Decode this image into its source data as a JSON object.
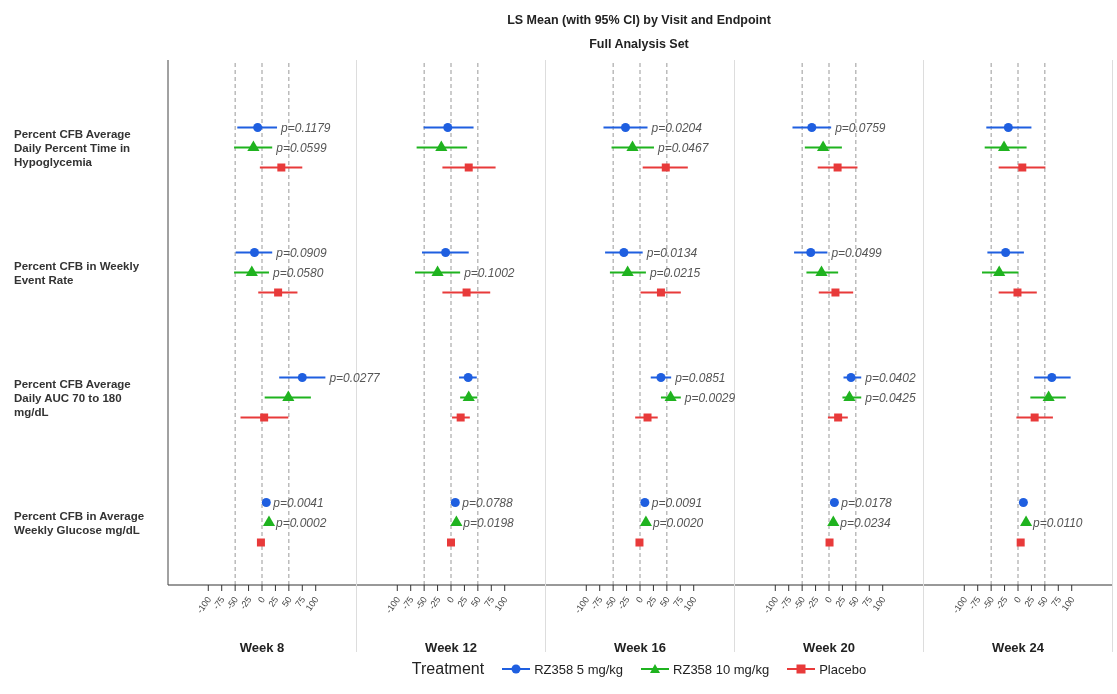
{
  "chart_data": [
    {
      "type": "scatter",
      "orientation": "horizontal",
      "xlabel": "Week 8",
      "legend": "bottom",
      "legend_title": "Treatment",
      "categories": [
        "Percent CFB Average Daily Percent Time in Hypoglycemia",
        "Percent CFB in Weekly Event Rate",
        "Percent CFB Average Daily AUC 70 to 180 mg/dL",
        "Percent CFB in Average Weekly Glucose mg/dL"
      ],
      "xlim": [
        -175,
        175
      ],
      "xticks": [
        -100,
        -75,
        -50,
        -25,
        0,
        25,
        50,
        75,
        100
      ],
      "ref_lines": [
        {
          "axis": "x",
          "value": -50,
          "color": "#999999",
          "line_style": "dashed"
        },
        {
          "axis": "x",
          "value": 0,
          "color": "#999999",
          "line_style": "dashed"
        },
        {
          "axis": "x",
          "value": 50,
          "color": "#999999",
          "line_style": "dashed"
        }
      ],
      "annotations": [
        {
          "text": "p=0.1179",
          "x": -8,
          "y": "Percent CFB Average Daily Percent Time in Hypoglycemia"
        },
        {
          "text": "p=0.0599",
          "x": -16,
          "y": "Percent CFB Average Daily Percent Time in Hypoglycemia"
        },
        {
          "text": "p=0.0909",
          "x": -14,
          "y": "Percent CFB in Weekly Event Rate"
        },
        {
          "text": "p=0.0580",
          "x": -19,
          "y": "Percent CFB in Weekly Event Rate"
        },
        {
          "text": "p=0.0277",
          "x": 75,
          "y": "Percent CFB Average Daily AUC 70 to 180 mg/dL"
        },
        {
          "text": "p=0.0041",
          "x": 8,
          "y": "Percent CFB in Average Weekly Glucose mg/dL"
        },
        {
          "text": "p=0.0002",
          "x": 13,
          "y": "Percent CFB in Average Weekly Glucose mg/dL"
        }
      ],
      "series": [
        {
          "name": "RZ358 5 mg/kg",
          "color": "#1f5fe0",
          "marker": "circle",
          "values": [
            -8,
            -14,
            75,
            8
          ],
          "errors": [
            [
              -46,
              28
            ],
            [
              -49,
              19
            ],
            [
              32,
              118
            ],
            null
          ]
        },
        {
          "name": "RZ358 10 mg/kg",
          "color": "#1fb31f",
          "marker": "triangle",
          "values": [
            -16,
            -19,
            49,
            13
          ],
          "errors": [
            [
              -52,
              19
            ],
            [
              -52,
              13
            ],
            [
              5,
              91
            ],
            null
          ]
        },
        {
          "name": "Placebo",
          "color": "#e83a3a",
          "marker": "square",
          "values": [
            36,
            30,
            4,
            -2
          ],
          "errors": [
            [
              -4,
              75
            ],
            [
              -7,
              66
            ],
            [
              -40,
              49
            ],
            null
          ]
        }
      ]
    },
    {
      "type": "scatter",
      "orientation": "horizontal",
      "xlabel": "Week 12",
      "tick_labels": "x",
      "categories": [
        "Percent CFB Average Daily Percent Time in Hypoglycemia",
        "Percent CFB in Weekly Event Rate",
        "Percent CFB Average Daily AUC 70 to 180 mg/dL",
        "Percent CFB in Average Weekly Glucose mg/dL"
      ],
      "xlim": [
        -175,
        175
      ],
      "xticks": [
        -100,
        -75,
        -50,
        -25,
        0,
        25,
        50,
        75,
        100
      ],
      "ref_lines": [
        {
          "axis": "x",
          "value": -50,
          "color": "#999999",
          "line_style": "dashed"
        },
        {
          "axis": "x",
          "value": 0,
          "color": "#999999",
          "line_style": "dashed"
        },
        {
          "axis": "x",
          "value": 50,
          "color": "#999999",
          "line_style": "dashed"
        }
      ],
      "annotations": [
        {
          "text": "p=0.1002",
          "x": -25,
          "y": "Percent CFB in Weekly Event Rate"
        },
        {
          "text": "p=0.0788",
          "x": 8,
          "y": "Percent CFB in Average Weekly Glucose mg/dL"
        },
        {
          "text": "p=0.0198",
          "x": 10,
          "y": "Percent CFB in Average Weekly Glucose mg/dL"
        }
      ],
      "series": [
        {
          "color": "#1f5fe0",
          "marker": "circle",
          "values": [
            -6,
            -10,
            32,
            8
          ],
          "errors": [
            [
              -51,
              42
            ],
            [
              -54,
              33
            ],
            [
              15,
              48
            ],
            null
          ]
        },
        {
          "color": "#1fb31f",
          "marker": "triangle",
          "values": [
            -18,
            -25,
            33,
            10
          ],
          "errors": [
            [
              -64,
              30
            ],
            [
              -67,
              17
            ],
            [
              17,
              49
            ],
            null
          ]
        },
        {
          "color": "#e83a3a",
          "marker": "square",
          "values": [
            33,
            29,
            18,
            0
          ],
          "errors": [
            [
              -16,
              83
            ],
            [
              -16,
              73
            ],
            [
              2,
              35
            ],
            null
          ]
        }
      ]
    },
    {
      "type": "scatter",
      "orientation": "horizontal",
      "title": "LS Mean (with 95% CI) by Visit and Endpoint",
      "subtitle": "Full Analysis Set",
      "xlabel": "Week 16",
      "tick_labels": "x",
      "categories": [
        "Percent CFB Average Daily Percent Time in Hypoglycemia",
        "Percent CFB in Weekly Event Rate",
        "Percent CFB Average Daily AUC 70 to 180 mg/dL",
        "Percent CFB in Average Weekly Glucose mg/dL"
      ],
      "xlim": [
        -175,
        175
      ],
      "xticks": [
        -100,
        -75,
        -50,
        -25,
        0,
        25,
        50,
        75,
        100
      ],
      "ref_lines": [
        {
          "axis": "x",
          "value": -50,
          "color": "#999999",
          "line_style": "dashed"
        },
        {
          "axis": "x",
          "value": 0,
          "color": "#999999",
          "line_style": "dashed"
        },
        {
          "axis": "x",
          "value": 50,
          "color": "#999999",
          "line_style": "dashed"
        }
      ],
      "annotations": [
        {
          "text": "p=0.0204",
          "x": -27,
          "y": "Percent CFB Average Daily Percent Time in Hypoglycemia"
        },
        {
          "text": "p=0.0467",
          "x": -14,
          "y": "Percent CFB Average Daily Percent Time in Hypoglycemia"
        },
        {
          "text": "p=0.0134",
          "x": -30,
          "y": "Percent CFB in Weekly Event Rate"
        },
        {
          "text": "p=0.0215",
          "x": -23,
          "y": "Percent CFB in Weekly Event Rate"
        },
        {
          "text": "p=0.0851",
          "x": 39,
          "y": "Percent CFB Average Daily AUC 70 to 180 mg/dL"
        },
        {
          "text": "p=0.0029",
          "x": 57,
          "y": "Percent CFB Average Daily AUC 70 to 180 mg/dL"
        },
        {
          "text": "p=0.0091",
          "x": 9,
          "y": "Percent CFB in Average Weekly Glucose mg/dL"
        },
        {
          "text": "p=0.0020",
          "x": 11,
          "y": "Percent CFB in Average Weekly Glucose mg/dL"
        }
      ],
      "series": [
        {
          "color": "#1f5fe0",
          "marker": "circle",
          "values": [
            -27,
            -30,
            39,
            9
          ],
          "errors": [
            [
              -68,
              14
            ],
            [
              -65,
              5
            ],
            [
              20,
              58
            ],
            null
          ]
        },
        {
          "color": "#1fb31f",
          "marker": "triangle",
          "values": [
            -14,
            -23,
            57,
            11
          ],
          "errors": [
            [
              -53,
              26
            ],
            [
              -56,
              11
            ],
            [
              39,
              76
            ],
            null
          ]
        },
        {
          "color": "#e83a3a",
          "marker": "square",
          "values": [
            48,
            39,
            14,
            -1
          ],
          "errors": [
            [
              5,
              89
            ],
            [
              1,
              76
            ],
            [
              -9,
              33
            ],
            null
          ]
        }
      ]
    },
    {
      "type": "scatter",
      "orientation": "horizontal",
      "xlabel": "Week 20",
      "tick_labels": "x",
      "categories": [
        "Percent CFB Average Daily Percent Time in Hypoglycemia",
        "Percent CFB in Weekly Event Rate",
        "Percent CFB Average Daily AUC 70 to 180 mg/dL",
        "Percent CFB in Average Weekly Glucose mg/dL"
      ],
      "xlim": [
        -175,
        175
      ],
      "xticks": [
        -100,
        -75,
        -50,
        -25,
        0,
        25,
        50,
        75,
        100
      ],
      "ref_lines": [
        {
          "axis": "x",
          "value": -50,
          "color": "#999999",
          "line_style": "dashed"
        },
        {
          "axis": "x",
          "value": 0,
          "color": "#999999",
          "line_style": "dashed"
        },
        {
          "axis": "x",
          "value": 50,
          "color": "#999999",
          "line_style": "dashed"
        }
      ],
      "annotations": [
        {
          "text": "p=0.0759",
          "x": -32,
          "y": "Percent CFB Average Daily Percent Time in Hypoglycemia"
        },
        {
          "text": "p=0.0499",
          "x": -34,
          "y": "Percent CFB in Weekly Event Rate"
        },
        {
          "text": "p=0.0402",
          "x": 41,
          "y": "Percent CFB Average Daily AUC 70 to 180 mg/dL"
        },
        {
          "text": "p=0.0425",
          "x": 38,
          "y": "Percent CFB Average Daily AUC 70 to 180 mg/dL"
        },
        {
          "text": "p=0.0178",
          "x": 10,
          "y": "Percent CFB in Average Weekly Glucose mg/dL"
        },
        {
          "text": "p=0.0234",
          "x": 8,
          "y": "Percent CFB in Average Weekly Glucose mg/dL"
        }
      ],
      "series": [
        {
          "color": "#1f5fe0",
          "marker": "circle",
          "values": [
            -32,
            -34,
            41,
            10
          ],
          "errors": [
            [
              -68,
              4
            ],
            [
              -65,
              -3
            ],
            [
              27,
              60
            ],
            null
          ]
        },
        {
          "color": "#1fb31f",
          "marker": "triangle",
          "values": [
            -11,
            -14,
            38,
            8
          ],
          "errors": [
            [
              -45,
              24
            ],
            [
              -42,
              17
            ],
            [
              25,
              60
            ],
            null
          ]
        },
        {
          "color": "#e83a3a",
          "marker": "square",
          "values": [
            16,
            12,
            17,
            1
          ],
          "errors": [
            [
              -21,
              53
            ],
            [
              -19,
              45
            ],
            [
              -2,
              35
            ],
            null
          ]
        }
      ]
    },
    {
      "type": "scatter",
      "orientation": "horizontal",
      "xlabel": "Week 24",
      "tick_labels": "x",
      "categories": [
        "Percent CFB Average Daily Percent Time in Hypoglycemia",
        "Percent CFB in Weekly Event Rate",
        "Percent CFB Average Daily AUC 70 to 180 mg/dL",
        "Percent CFB in Average Weekly Glucose mg/dL"
      ],
      "xlim": [
        -175,
        175
      ],
      "xticks": [
        -100,
        -75,
        -50,
        -25,
        0,
        25,
        50,
        75,
        100
      ],
      "ref_lines": [
        {
          "axis": "x",
          "value": -50,
          "color": "#999999",
          "line_style": "dashed"
        },
        {
          "axis": "x",
          "value": 0,
          "color": "#999999",
          "line_style": "dashed"
        },
        {
          "axis": "x",
          "value": 50,
          "color": "#999999",
          "line_style": "dashed"
        }
      ],
      "annotations": [
        {
          "text": "p=0.0110",
          "x": 15,
          "y": "Percent CFB in Average Weekly Glucose mg/dL"
        }
      ],
      "series": [
        {
          "color": "#1f5fe0",
          "marker": "circle",
          "values": [
            -18,
            -23,
            63,
            10
          ],
          "errors": [
            [
              -59,
              25
            ],
            [
              -57,
              11
            ],
            [
              30,
              98
            ],
            null
          ]
        },
        {
          "color": "#1fb31f",
          "marker": "triangle",
          "values": [
            -26,
            -35,
            57,
            15
          ],
          "errors": [
            [
              -62,
              16
            ],
            [
              -67,
              1
            ],
            [
              23,
              89
            ],
            null
          ]
        },
        {
          "color": "#e83a3a",
          "marker": "square",
          "values": [
            8,
            -1,
            31,
            5
          ],
          "errors": [
            [
              -36,
              51
            ],
            [
              -36,
              35
            ],
            [
              -3,
              65
            ],
            null
          ]
        }
      ]
    }
  ]
}
